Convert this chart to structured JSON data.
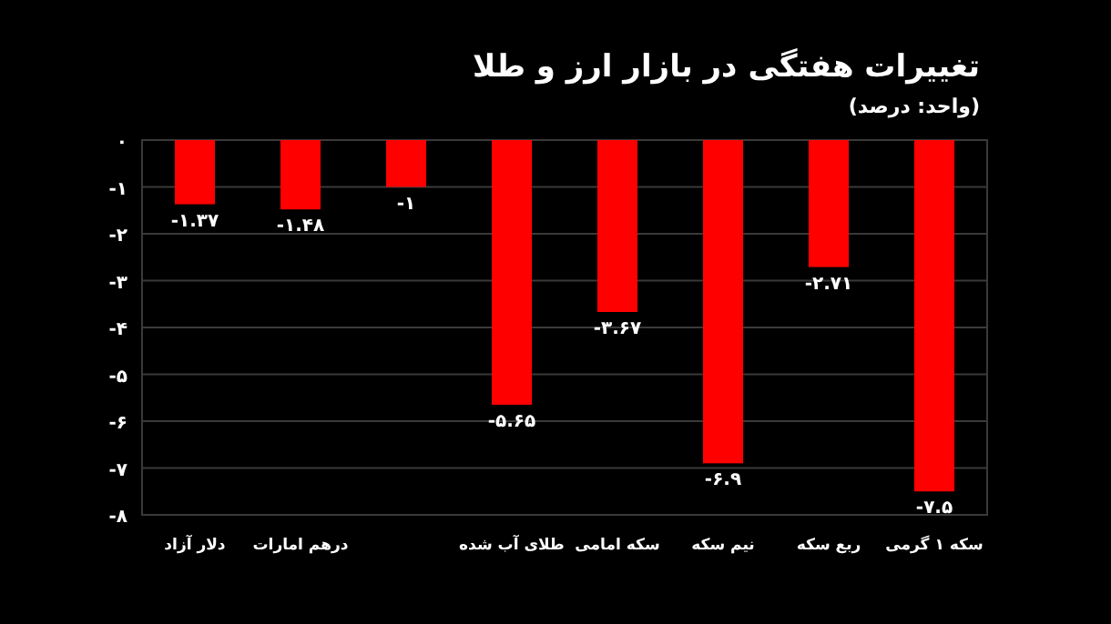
{
  "chart_data": {
    "type": "bar",
    "title": "تغییرات هفتگی در بازار ارز و طلا",
    "subtitle": "(واحد: درصد)",
    "categories": [
      "دلار آزاد",
      "درهم امارات",
      null,
      "طلای آب شده",
      "سکه امامی",
      "نیم سکه",
      "ربع سکه",
      "سکه ۱ گرمی"
    ],
    "values": [
      -1.37,
      -1.48,
      -1,
      -5.65,
      -3.67,
      -6.9,
      -2.71,
      -7.5
    ],
    "value_labels": [
      "-۱.۳۷",
      "-۱.۴۸",
      "-۱",
      "-۵.۶۵",
      "-۳.۶۷",
      "-۶.۹",
      "-۲.۷۱",
      "-۷.۵"
    ],
    "color": "#ff0000",
    "ylim": [
      -8,
      0
    ],
    "yticks": [
      {
        "value": 0,
        "label": "۰"
      },
      {
        "value": -1,
        "label": "-۱"
      },
      {
        "value": -2,
        "label": "-۲"
      },
      {
        "value": -3,
        "label": "-۳"
      },
      {
        "value": -4,
        "label": "-۴"
      },
      {
        "value": -5,
        "label": "-۵"
      },
      {
        "value": -6,
        "label": "-۶"
      },
      {
        "value": -7,
        "label": "-۷"
      },
      {
        "value": -8,
        "label": "-۸"
      }
    ],
    "grid": "y"
  }
}
